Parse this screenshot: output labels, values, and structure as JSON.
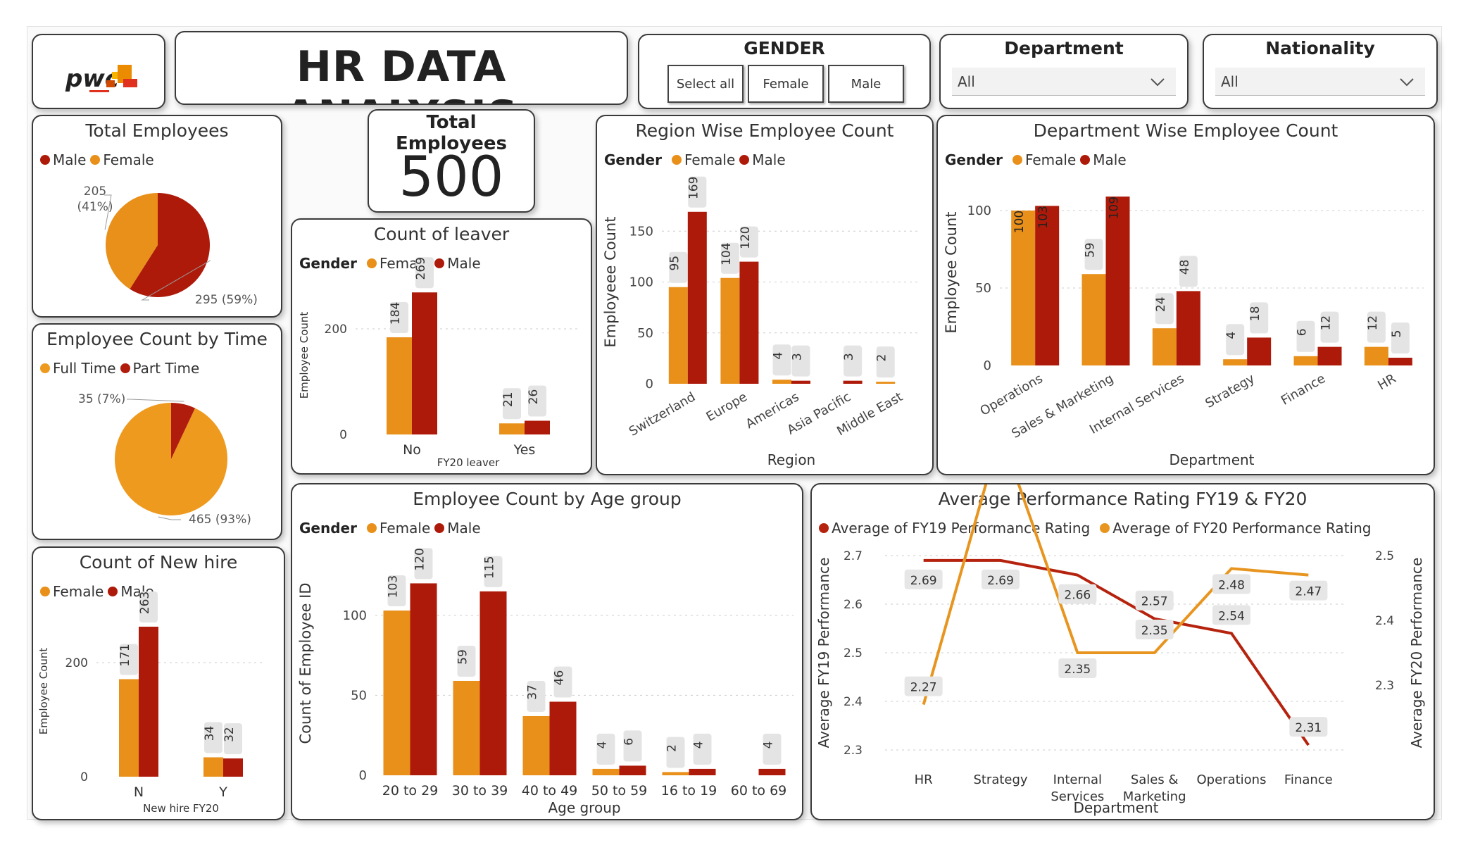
{
  "header": {
    "title": "HR DATA ANALYSIS",
    "logo_text": "pwc"
  },
  "colors": {
    "female": "#E8901A",
    "male": "#AE1A0A",
    "fulltime": "#EE9A1F",
    "parttime": "#B01D0D",
    "fy19": "#B5230E",
    "fy20": "#E8951F"
  },
  "slicers": {
    "gender": {
      "title": "GENDER",
      "options": [
        "Select all",
        "Female",
        "Male"
      ]
    },
    "department": {
      "title": "Department",
      "value": "All"
    },
    "nationality": {
      "title": "Nationality",
      "value": "All"
    }
  },
  "kpi": {
    "title": "Total Employees",
    "value": "500"
  },
  "total_employees_card": {
    "title": "Total Employees",
    "legend": [
      "Male",
      "Female"
    ]
  },
  "employee_time_card": {
    "title": "Employee Count by Time",
    "legend": [
      "Full Time",
      "Part Time"
    ]
  },
  "chart_data": [
    {
      "id": "gender_pie",
      "type": "pie",
      "title": "Total Employees",
      "slices": [
        {
          "label": "Male",
          "value": 295,
          "pct": "59%",
          "text": "295 (59%)"
        },
        {
          "label": "Female",
          "value": 205,
          "pct": "41%",
          "text": "205 (41%)"
        }
      ]
    },
    {
      "id": "time_pie",
      "type": "pie",
      "title": "Employee Count by Time",
      "slices": [
        {
          "label": "Full Time",
          "value": 465,
          "pct": "93%",
          "text": "465 (93%)"
        },
        {
          "label": "Part Time",
          "value": 35,
          "pct": "7%",
          "text": "35 (7%)"
        }
      ]
    },
    {
      "id": "newhire",
      "type": "bar",
      "title": "Count of New hire",
      "legend_title": "",
      "categories": [
        "N",
        "Y"
      ],
      "xlabel": "New hire FY20",
      "ylabel": "Employee Count",
      "yticks": [
        0,
        200
      ],
      "ylim": [
        0,
        300
      ],
      "series": [
        {
          "name": "Female",
          "values": [
            171,
            34
          ]
        },
        {
          "name": "Male",
          "values": [
            263,
            32
          ]
        }
      ]
    },
    {
      "id": "leaver",
      "type": "bar",
      "title": "Count of leaver",
      "legend_title": "Gender",
      "categories": [
        "No",
        "Yes"
      ],
      "xlabel": "FY20 leaver",
      "ylabel": "Employee Count",
      "yticks": [
        0,
        200
      ],
      "ylim": [
        0,
        300
      ],
      "series": [
        {
          "name": "Female",
          "values": [
            184,
            21
          ]
        },
        {
          "name": "Male",
          "values": [
            269,
            26
          ]
        }
      ]
    },
    {
      "id": "region",
      "type": "bar",
      "title": "Region Wise Employee Count",
      "legend_title": "Gender",
      "categories": [
        "Switzerland",
        "Europe",
        "Americas",
        "Asia Pacific",
        "Middle East"
      ],
      "xlabel": "Region",
      "ylabel": "Employeee Count",
      "yticks": [
        0,
        50,
        100,
        150
      ],
      "ylim": [
        0,
        200
      ],
      "series": [
        {
          "name": "Female",
          "values": [
            95,
            104,
            4,
            null,
            2
          ]
        },
        {
          "name": "Male",
          "values": [
            169,
            120,
            3,
            3,
            null
          ]
        }
      ]
    },
    {
      "id": "department",
      "type": "bar",
      "title": "Department Wise Employee Count",
      "legend_title": "Gender",
      "categories": [
        "Operations",
        "Sales & Marketing",
        "Internal Services",
        "Strategy",
        "Finance",
        "HR"
      ],
      "xlabel": "Department",
      "ylabel": "Employee Count",
      "yticks": [
        0,
        50,
        100
      ],
      "ylim": [
        0,
        120
      ],
      "series": [
        {
          "name": "Female",
          "values": [
            100,
            59,
            24,
            4,
            6,
            12
          ]
        },
        {
          "name": "Male",
          "values": [
            103,
            109,
            48,
            18,
            12,
            5
          ]
        }
      ]
    },
    {
      "id": "agegroup",
      "type": "bar",
      "title": "Employee Count by Age group",
      "legend_title": "Gender",
      "categories": [
        "20 to 29",
        "30 to 39",
        "40 to 49",
        "50 to 59",
        "16 to 19",
        "60 to 69"
      ],
      "xlabel": "Age group",
      "ylabel": "Count of Employee ID",
      "yticks": [
        0,
        50,
        100
      ],
      "ylim": [
        0,
        140
      ],
      "series": [
        {
          "name": "Female",
          "values": [
            103,
            59,
            37,
            4,
            2,
            null
          ]
        },
        {
          "name": "Male",
          "values": [
            120,
            115,
            46,
            6,
            4,
            4
          ]
        }
      ]
    },
    {
      "id": "performance",
      "type": "line",
      "title": "Average Performance Rating FY19 & FY20",
      "categories": [
        "HR",
        "Strategy",
        "Internal Services",
        "Sales & Marketing",
        "Operations",
        "Finance"
      ],
      "xlabel": "Department",
      "ylabel": "Average FY19 Performance",
      "ylabel2": "Average FY20 Performance",
      "ylim": [
        2.3,
        2.7
      ],
      "yticks": [
        2.3,
        2.4,
        2.5,
        2.6,
        2.7
      ],
      "ylim2": [
        2.2,
        2.5
      ],
      "yticks2": [
        2.3,
        2.4,
        2.5
      ],
      "series": [
        {
          "name": "Average of FY19 Performance Rating",
          "axis": "left",
          "values": [
            2.69,
            2.69,
            2.66,
            2.57,
            2.54,
            2.31
          ]
        },
        {
          "name": "Average of FY20 Performance Rating",
          "axis": "right",
          "values": [
            2.27,
            2.69,
            2.35,
            2.35,
            2.48,
            2.47
          ]
        }
      ]
    }
  ]
}
